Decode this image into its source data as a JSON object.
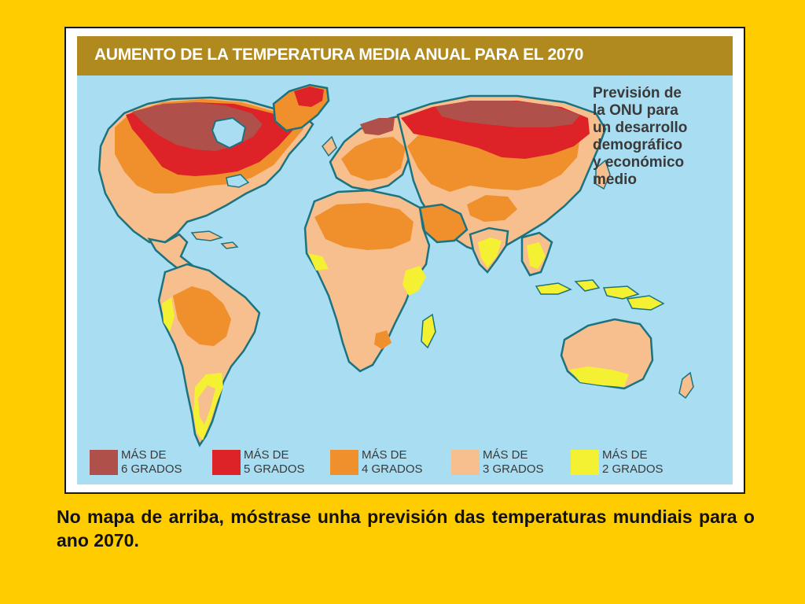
{
  "map": {
    "title": "AUMENTO DE LA TEMPERATURA MEDIA ANUAL PARA EL 2070",
    "subtitle_lines": [
      "Previsión de",
      "la ONU para",
      "un desarrollo",
      "demográfico",
      "y económico",
      "medio"
    ],
    "legend": [
      {
        "line1": "MÁS DE",
        "line2": "6 GRADOS",
        "color": "#b0504a"
      },
      {
        "line1": "MÁS DE",
        "line2": "5 GRADOS",
        "color": "#dd2228"
      },
      {
        "line1": "MÁS DE",
        "line2": "4 GRADOS",
        "color": "#f0902c"
      },
      {
        "line1": "MÁS DE",
        "line2": "3 GRADOS",
        "color": "#f7be8e"
      },
      {
        "line1": "MÁS DE",
        "line2": "2 GRADOS",
        "color": "#f4f032"
      }
    ],
    "ocean_color": "#a9ddf2",
    "coast_color": "#1c7380"
  },
  "caption": "No mapa de arriba, móstrase unha previsión das temperaturas mundiais para o ano 2070."
}
